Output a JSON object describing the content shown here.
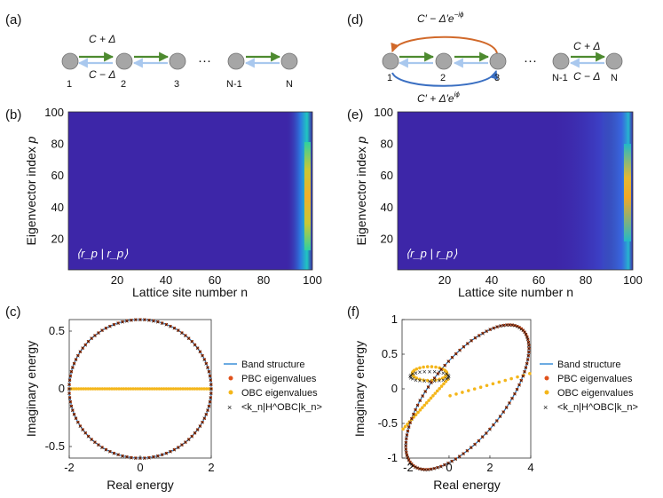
{
  "panel_labels": {
    "a": "(a)",
    "b": "(b)",
    "c": "(c)",
    "d": "(d)",
    "e": "(e)",
    "f": "(f)"
  },
  "chain_a": {
    "hop_forward": "C + Δ",
    "hop_backward": "C − Δ",
    "node_labels": [
      "1",
      "2",
      "3",
      "N-1",
      "N"
    ],
    "ellipsis": "···"
  },
  "chain_d": {
    "long_hop_top": "C′ − Δ′e",
    "long_hop_top_exp": "−iϕ",
    "long_hop_bottom": "C′ + Δ′e",
    "long_hop_bottom_exp": "iϕ",
    "hop_forward": "C + Δ",
    "hop_backward": "C − Δ",
    "node_labels": [
      "1",
      "2",
      "3",
      "N-1",
      "N"
    ],
    "ellipsis": "···"
  },
  "colors": {
    "band": "#3a8fd9",
    "pbc": "#e0511b",
    "obc": "#f4b61a",
    "kn": "#7e2f8e",
    "arrow_green": "#4d8a2f",
    "arrow_blue": "#a9c8ee",
    "arrow_orange": "#d1692a",
    "arrow_darkblue": "#3a6fc2",
    "node": "#a6a6a6",
    "heat_bg": "#3d26a8"
  },
  "chart_data": [
    {
      "panel": "b",
      "type": "heatmap",
      "xlabel": "Lattice site number n",
      "ylabel": "Eigenvector index",
      "ylabel_var": "p",
      "xticks": [
        20,
        40,
        60,
        80,
        100
      ],
      "yticks": [
        20,
        40,
        60,
        80,
        100
      ],
      "xlim": [
        0,
        100
      ],
      "ylim": [
        0,
        100
      ],
      "annotation": "⟨r_p | r_p⟩",
      "description_values": "intensity concentrated at site n = 100 for all p"
    },
    {
      "panel": "e",
      "type": "heatmap",
      "xlabel": "Lattice site number n",
      "ylabel": "Eigenvector index",
      "ylabel_var": "p",
      "xticks": [
        20,
        40,
        60,
        80,
        100
      ],
      "yticks": [
        20,
        40,
        60,
        80,
        100
      ],
      "xlim": [
        0,
        100
      ],
      "ylim": [
        0,
        100
      ],
      "annotation": "⟨r_p | r_p⟩"
    },
    {
      "panel": "c",
      "type": "scatter",
      "xlabel": "Real energy",
      "ylabel": "Imaginary energy",
      "xlim": [
        -2,
        2
      ],
      "ylim": [
        -0.6,
        0.6
      ],
      "xticks": [
        "-2",
        "0",
        "2"
      ],
      "yticks": [
        "-0.5",
        "0",
        "0.5"
      ],
      "model": {
        "kind": "circle",
        "C": 1,
        "Delta": 0.3,
        "n": 100
      },
      "legend": [
        "Band structure",
        "PBC eigenvalues",
        "OBC eigenvalues",
        "<k_n|H^OBC|k_n>"
      ]
    },
    {
      "panel": "f",
      "type": "scatter",
      "xlabel": "Real energy",
      "ylabel": "Imaginary energy",
      "xlim": [
        -2.3,
        4
      ],
      "ylim": [
        -1,
        1
      ],
      "xticks": [
        "-2",
        "0",
        "2",
        "4"
      ],
      "yticks": [
        "-1",
        "-0.5",
        "0",
        "0.5",
        "1"
      ],
      "model": {
        "kind": "ellipse",
        "cx": 0.9,
        "cy": -0.12,
        "a": 3.1,
        "b": 0.75,
        "tilt_deg": 14,
        "n": 100
      },
      "legend": [
        "Band structure",
        "PBC eigenvalues",
        "OBC eigenvalues",
        "<k_n|H^OBC|k_n>"
      ]
    }
  ]
}
